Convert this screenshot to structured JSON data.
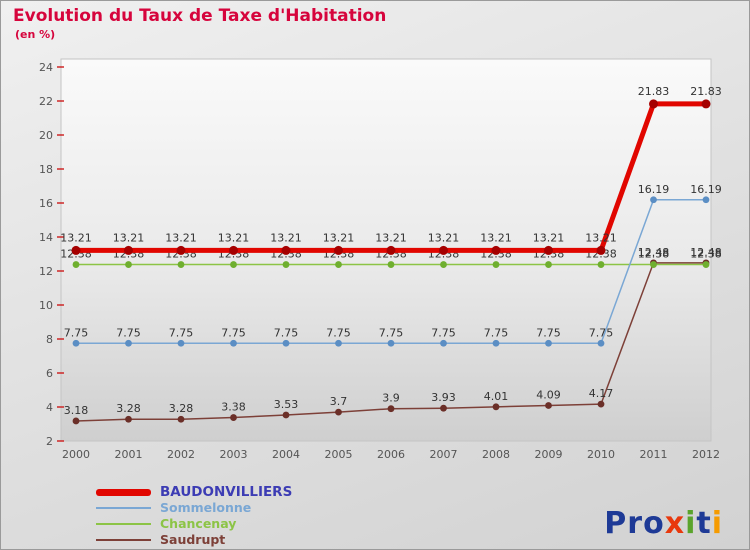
{
  "header": {
    "title": "Evolution du Taux de Taxe d'Habitation",
    "subtitle": "(en %)",
    "title_color": "#d6043c"
  },
  "chart_data": {
    "type": "line",
    "x": [
      2000,
      2001,
      2002,
      2003,
      2004,
      2005,
      2006,
      2007,
      2008,
      2009,
      2010,
      2011,
      2012
    ],
    "ylim": [
      2,
      24
    ],
    "ytick_step": 2,
    "grid": false,
    "legend_position": "bottom-left",
    "value_label_color": "#333333",
    "axis_label_color": "#555555",
    "tick_color": "#cc1a1a",
    "series": [
      {
        "name": "BAUDONVILLIERS",
        "color": "#e10600",
        "marker_color": "#a50000",
        "line_width": 5,
        "values": [
          13.21,
          13.21,
          13.21,
          13.21,
          13.21,
          13.21,
          13.21,
          13.21,
          13.21,
          13.21,
          13.21,
          21.83,
          21.83
        ]
      },
      {
        "name": "Sommelonne",
        "color": "#7aa7d4",
        "marker_color": "#5b8ec4",
        "line_width": 1.5,
        "values": [
          7.75,
          7.75,
          7.75,
          7.75,
          7.75,
          7.75,
          7.75,
          7.75,
          7.75,
          7.75,
          7.75,
          16.19,
          16.19
        ]
      },
      {
        "name": "Chancenay",
        "color": "#8cc446",
        "marker_color": "#6faf2f",
        "line_width": 1.5,
        "values": [
          12.38,
          12.38,
          12.38,
          12.38,
          12.38,
          12.38,
          12.38,
          12.38,
          12.38,
          12.38,
          12.38,
          12.38,
          12.38
        ]
      },
      {
        "name": "Saudrupt",
        "color": "#7d4038",
        "marker_color": "#6b2f28",
        "line_width": 1.5,
        "values": [
          3.18,
          3.28,
          3.28,
          3.38,
          3.53,
          3.7,
          3.9,
          3.93,
          4.01,
          4.09,
          4.17,
          12.48,
          12.48
        ]
      }
    ]
  },
  "legend": {
    "items": [
      {
        "label": "BAUDONVILLIERS",
        "swatch_color": "#e10600",
        "text_color": "#3c3cb4",
        "thick": true
      },
      {
        "label": "Sommelonne",
        "swatch_color": "#7aa7d4",
        "text_color": "#7aa7d4",
        "thick": false
      },
      {
        "label": "Chancenay",
        "swatch_color": "#8cc446",
        "text_color": "#8cc446",
        "thick": false
      },
      {
        "label": "Saudrupt",
        "swatch_color": "#7d4038",
        "text_color": "#7d4038",
        "thick": false
      }
    ]
  },
  "logo": {
    "letters": [
      {
        "ch": "P",
        "color": "#1e3a96"
      },
      {
        "ch": "r",
        "color": "#1e3a96"
      },
      {
        "ch": "o",
        "color": "#1e3a96"
      },
      {
        "ch": "x",
        "color": "#e8380d"
      },
      {
        "ch": "i",
        "color": "#5aa42c"
      },
      {
        "ch": "t",
        "color": "#1e3a96"
      },
      {
        "ch": "i",
        "color": "#f59b00"
      }
    ]
  }
}
